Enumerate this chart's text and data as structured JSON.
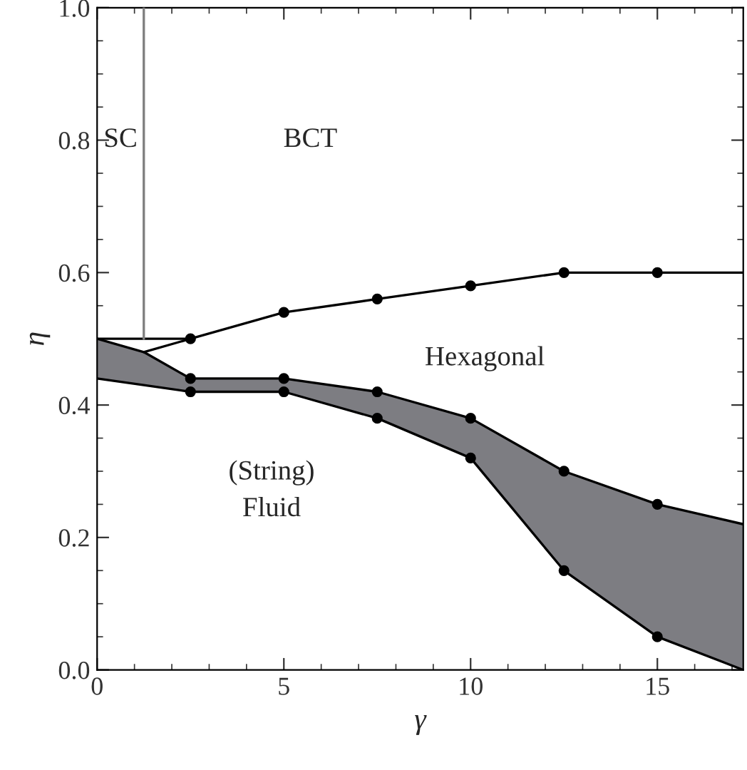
{
  "chart_data": {
    "type": "line",
    "xlabel": "γ",
    "ylabel": "η",
    "xlim": [
      0,
      17.3
    ],
    "ylim": [
      0,
      1
    ],
    "xticks": [
      0,
      5,
      10,
      15
    ],
    "yticks": [
      {
        "value": 0,
        "label": "0.0"
      },
      {
        "value": 0.2,
        "label": "0.2"
      },
      {
        "value": 0.4,
        "label": "0.4"
      },
      {
        "value": 0.6,
        "label": "0.6"
      },
      {
        "value": 0.8,
        "label": "0.8"
      },
      {
        "value": 1,
        "label": "1.0"
      }
    ],
    "grid": false,
    "legend": false,
    "series": [
      {
        "type": "line",
        "color": "#000000",
        "x": [
          0,
          1.25,
          2.5,
          5,
          7.5,
          10,
          12.5,
          15,
          17.3
        ],
        "values": [
          0.5,
          0.48,
          0.44,
          0.44,
          0.42,
          0.38,
          0.3,
          0.25,
          0.22
        ],
        "upper": [
          0.5,
          0.48,
          0.44,
          0.44,
          0.42,
          0.38,
          0.3,
          0.25,
          0.22
        ],
        "lower": [
          0.44,
          0.43,
          0.42,
          0.42,
          0.38,
          0.32,
          0.15,
          0.05,
          0.0
        ]
      },
      {
        "type": "line",
        "color": "#000000",
        "x": [
          0,
          1.25,
          2.5,
          5,
          7.5,
          10,
          12.5,
          15,
          17.3
        ],
        "values": [
          0.44,
          0.43,
          0.42,
          0.42,
          0.38,
          0.32,
          0.15,
          0.05,
          0.0
        ]
      },
      {
        "type": "line",
        "color": "#000000",
        "marker": "circle",
        "x": [
          2.5,
          5,
          7.5,
          10,
          12.5,
          15
        ],
        "values": [
          0.5,
          0.54,
          0.56,
          0.58,
          0.6,
          0.6
        ]
      },
      {
        "type": "scatter",
        "color": "#000000",
        "marker": "circle",
        "x": [
          2.5,
          5,
          7.5,
          10,
          12.5,
          15
        ],
        "values": [
          0.44,
          0.44,
          0.42,
          0.38,
          0.3,
          0.25
        ]
      },
      {
        "type": "scatter",
        "color": "#000000",
        "marker": "circle",
        "x": [
          2.5,
          5,
          7.5,
          10,
          12.5,
          15
        ],
        "values": [
          0.42,
          0.42,
          0.38,
          0.32,
          0.15,
          0.05
        ]
      },
      {
        "color": "#000000",
        "marker": "none",
        "x": [
          1.25,
          2.5
        ],
        "values": [
          0.48,
          0.5
        ]
      },
      {
        "color": "#000000",
        "marker": "none",
        "x": [
          0,
          2.5
        ],
        "values": [
          0.5,
          0.5
        ]
      },
      {
        "color": "#000000",
        "marker": "none",
        "x": [
          15,
          17.3
        ],
        "values": [
          0.6,
          0.6
        ]
      },
      {
        "color": "#808080",
        "marker": "none",
        "x": [
          1.25,
          1.25
        ],
        "values": [
          0.5,
          1.0
        ]
      }
    ],
    "annotations": [
      "SC",
      "BCT",
      "Hexagonal",
      "(String)\nFluid"
    ]
  }
}
